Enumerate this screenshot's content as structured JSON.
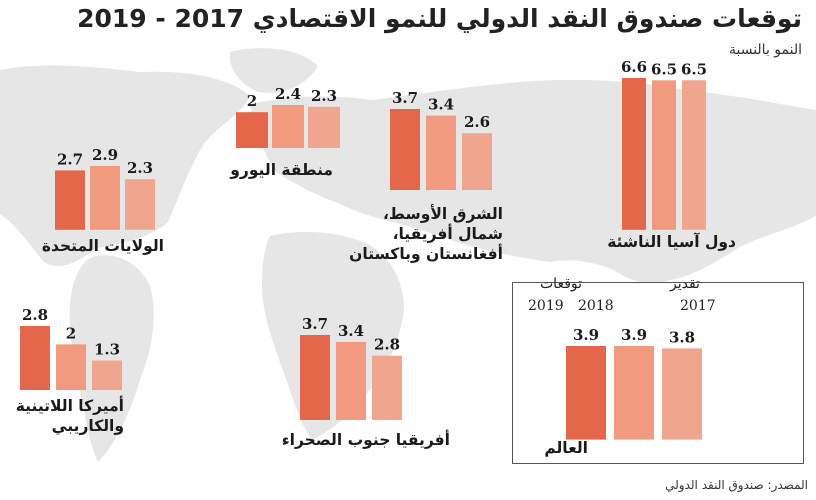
{
  "title": "توقعات صندوق النقد الدولي للنمو الاقتصادي 2017 - 2019",
  "subtitle": "النمو بالنسبة",
  "source": "المصدر: صندوق النقد الدولي",
  "colors": {
    "bar_2017": "#f0a68e",
    "bar_2018": "#f29a7f",
    "bar_2019": "#e4674c",
    "map": "#e6e6e6"
  },
  "world_box": {
    "estimate_label": "تقدير",
    "forecast_label": "توقعات",
    "year_2017": "2017",
    "year_2018": "2018",
    "year_2019": "2019"
  },
  "chart_data": [
    {
      "type": "bar",
      "name": "دول آسيا الناشئة",
      "categories": [
        "2017",
        "2018",
        "2019"
      ],
      "values": [
        6.5,
        6.5,
        6.6
      ]
    },
    {
      "type": "bar",
      "name": "الشرق الأوسط، شمال أفريقيا، أفغانستان وباكستان",
      "categories": [
        "2017",
        "2018",
        "2019"
      ],
      "values": [
        2.6,
        3.4,
        3.7
      ]
    },
    {
      "type": "bar",
      "name": "منطقة اليورو",
      "categories": [
        "2017",
        "2018",
        "2019"
      ],
      "values": [
        2.3,
        2.4,
        2
      ]
    },
    {
      "type": "bar",
      "name": "الولايات المتحدة",
      "categories": [
        "2017",
        "2018",
        "2019"
      ],
      "values": [
        2.3,
        2.9,
        2.7
      ]
    },
    {
      "type": "bar",
      "name": "أميركا اللاتينية والكاريبي",
      "categories": [
        "2017",
        "2018",
        "2019"
      ],
      "values": [
        1.3,
        2,
        2.8
      ]
    },
    {
      "type": "bar",
      "name": "أفريقيا جنوب الصحراء",
      "categories": [
        "2017",
        "2018",
        "2019"
      ],
      "values": [
        2.8,
        3.4,
        3.7
      ]
    },
    {
      "type": "bar",
      "name": "العالم",
      "categories": [
        "2017",
        "2018",
        "2019"
      ],
      "values": [
        3.8,
        3.9,
        3.9
      ]
    }
  ]
}
